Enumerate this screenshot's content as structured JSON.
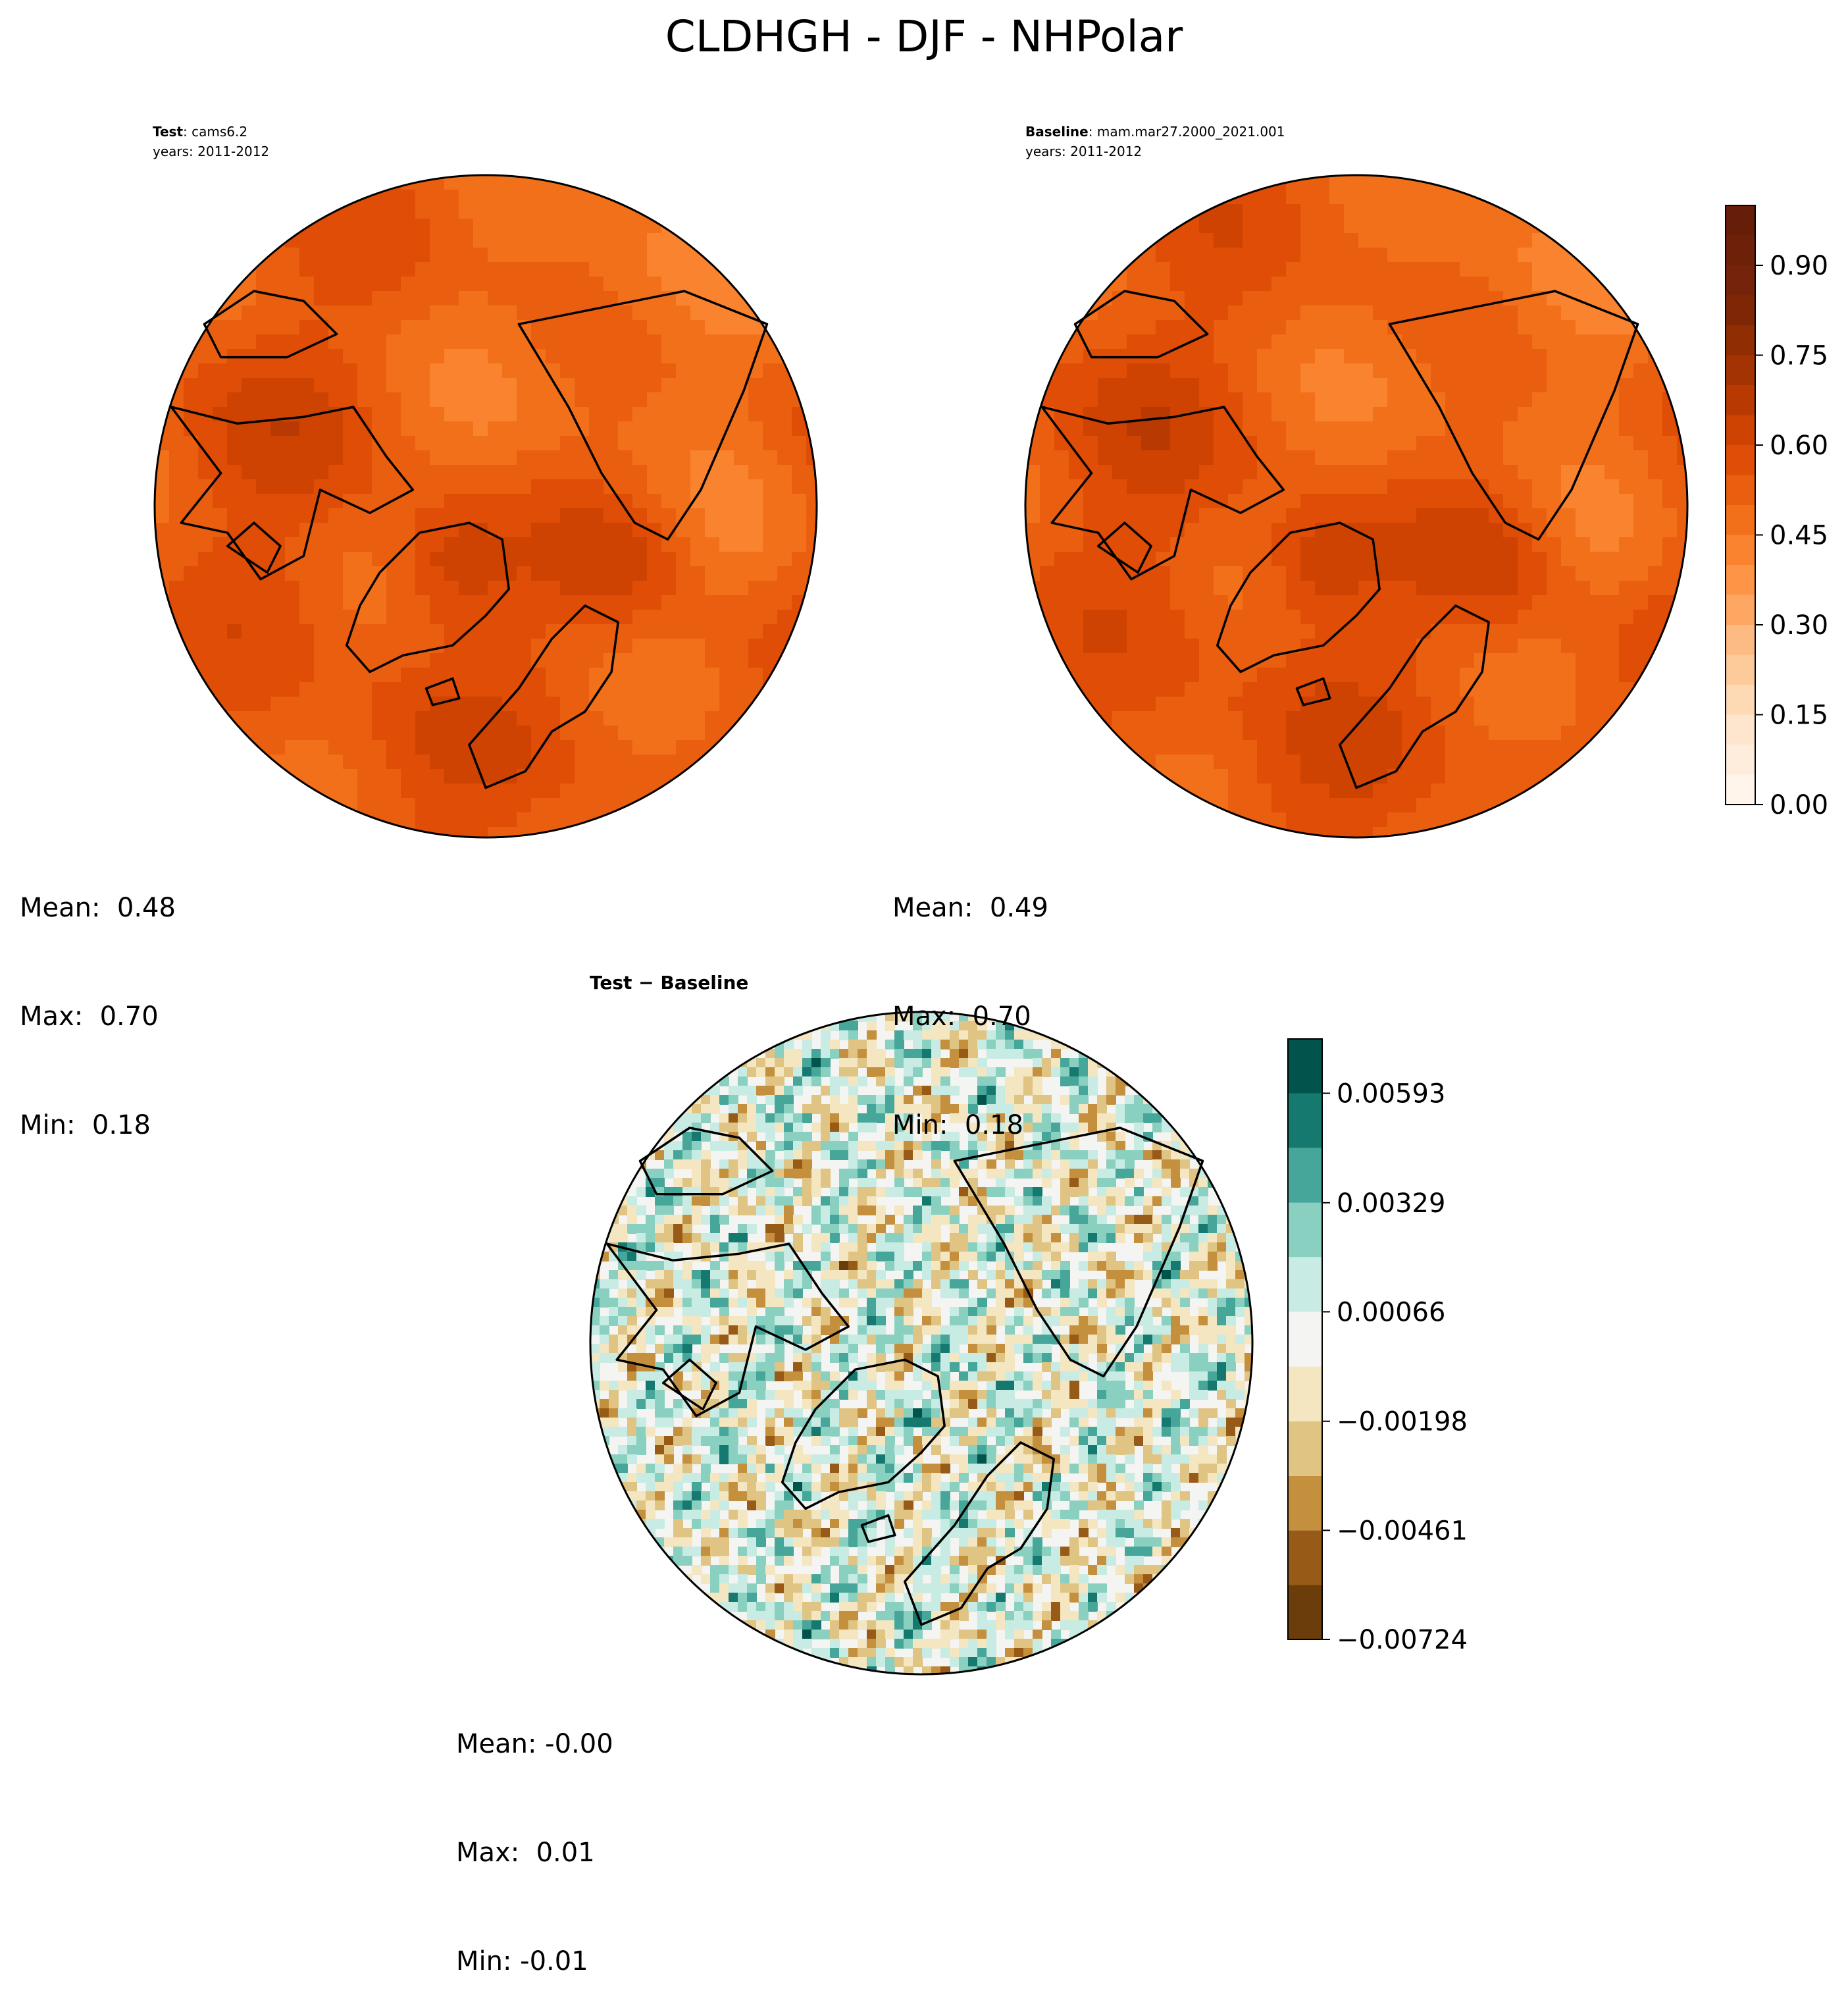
{
  "figure": {
    "title": "CLDHGH - DJF - NHPolar"
  },
  "panels": [
    {
      "id": "test",
      "label_bold": "Test",
      "label_rest": ": cams6.2",
      "years": "years: 2011-2012",
      "stats": {
        "mean": "Mean:  0.48",
        "max": "Max:  0.70",
        "min": "Min:  0.18"
      }
    },
    {
      "id": "baseline",
      "label_bold": "Baseline",
      "label_rest": ": mam.mar27.2000_2021.001",
      "years": "years: 2011-2012",
      "stats": {
        "mean": "Mean:  0.49",
        "max": "Max:  0.70",
        "min": "Min:  0.18"
      }
    },
    {
      "id": "diff",
      "label_bold": "Test − Baseline",
      "stats": {
        "mean": "Mean: -0.00",
        "max": "Max:  0.01",
        "min": "Min: -0.01"
      }
    }
  ],
  "chart_data": [
    {
      "type": "heatmap",
      "projection": "north-polar-stereographic",
      "panel": "Test: cams6.2",
      "colormap": "Oranges",
      "value_range": [
        0.0,
        0.7
      ],
      "mean": 0.48,
      "max": 0.7,
      "min": 0.18
    },
    {
      "type": "heatmap",
      "projection": "north-polar-stereographic",
      "panel": "Baseline: mam.mar27.2000_2021.001",
      "colormap": "Oranges",
      "value_range": [
        0.0,
        0.7
      ],
      "mean": 0.49,
      "max": 0.7,
      "min": 0.18,
      "colorbar": {
        "levels": [
          0.0,
          0.05,
          0.1,
          0.15,
          0.2,
          0.25,
          0.3,
          0.35,
          0.4,
          0.45,
          0.5,
          0.55,
          0.6,
          0.65,
          0.7,
          0.75,
          0.8,
          0.85,
          0.9,
          0.95,
          1.0
        ],
        "ticks": [
          0.0,
          0.15,
          0.3,
          0.45,
          0.6,
          0.75,
          0.9
        ],
        "tick_labels": [
          "0.00",
          "0.15",
          "0.30",
          "0.45",
          "0.60",
          "0.75",
          "0.90"
        ],
        "colors": [
          "#fff5eb",
          "#feeddc",
          "#fee6ce",
          "#fdd9b4",
          "#fdcb9a",
          "#fdba83",
          "#fda762",
          "#fd9446",
          "#f9832e",
          "#f3701b",
          "#ea5f0f",
          "#df4d06",
          "#ce4302",
          "#b83a02",
          "#a33303",
          "#912d03",
          "#7f2704",
          "#75230a",
          "#6e2109",
          "#661e08"
        ]
      }
    },
    {
      "type": "heatmap",
      "projection": "north-polar-stereographic",
      "panel": "Test − Baseline",
      "colormap": "BrBG",
      "mean": -0.0,
      "max": 0.01,
      "min": -0.01,
      "colorbar": {
        "levels": [
          -0.00724,
          -0.00593,
          -0.00461,
          -0.0033,
          -0.00198,
          -0.00066,
          0.00066,
          0.00198,
          0.00329,
          0.00461,
          0.00593,
          0.00724
        ],
        "ticks": [
          -0.00724,
          -0.00461,
          -0.00198,
          0.00066,
          0.00329,
          0.00593
        ],
        "tick_labels": [
          "−0.00724",
          "−0.00461",
          "−0.00198",
          "0.00066",
          "0.00329",
          "0.00593"
        ],
        "colors": [
          "#6b3d0a",
          "#985b17",
          "#c5903e",
          "#e0c484",
          "#f4e6c1",
          "#f4f4f2",
          "#c8ebe4",
          "#8ad0c1",
          "#47a69a",
          "#16796f",
          "#01544b"
        ]
      }
    }
  ]
}
